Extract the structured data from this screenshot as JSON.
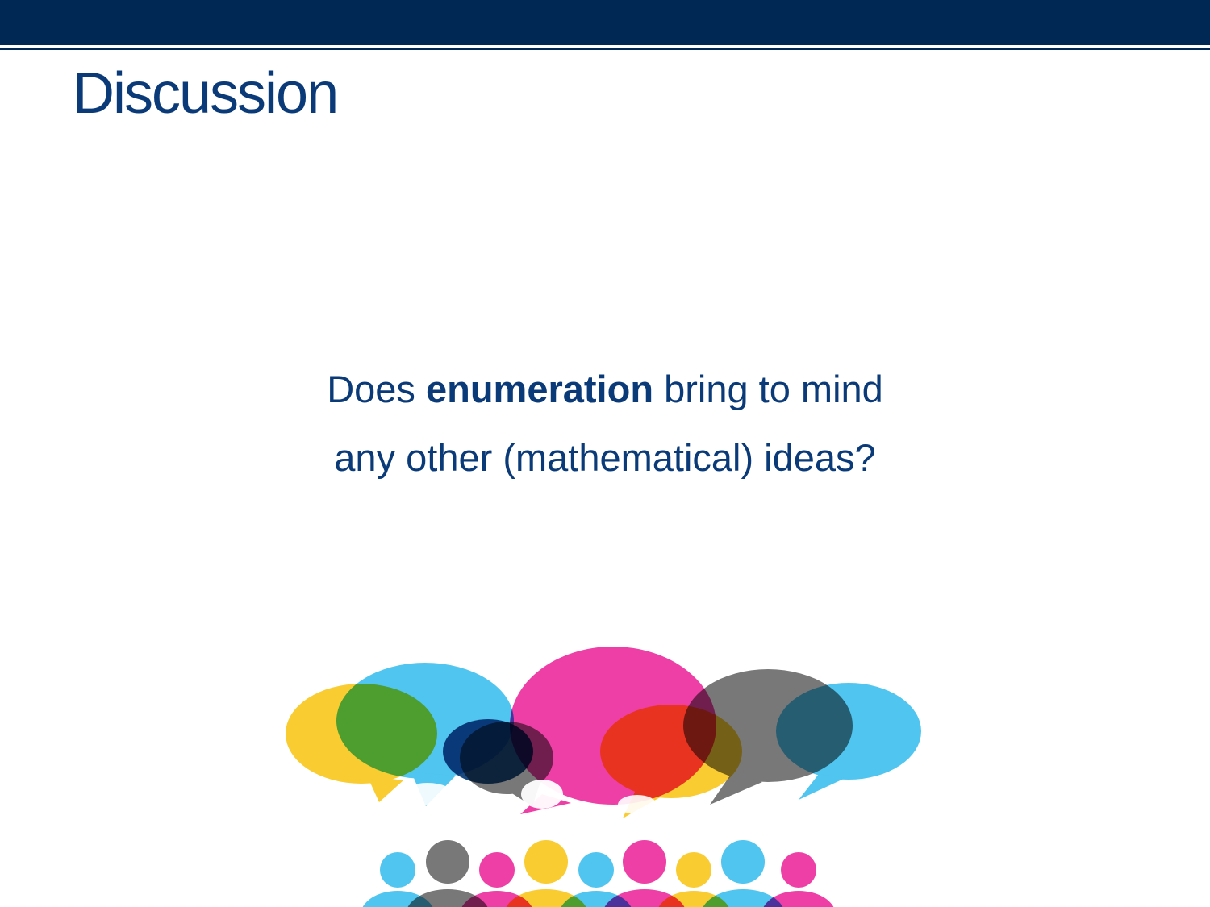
{
  "slide": {
    "title": "Discussion",
    "question": {
      "line1_before": "Does ",
      "line1_bold": "enumeration",
      "line1_after": " bring to mind",
      "line2": "any other (mathematical) ideas?"
    }
  },
  "colors": {
    "header_navy": "#002855",
    "text_blue": "#0a3a78",
    "yellow": "#f9cc32",
    "cyan": "#4fc5ef",
    "magenta": "#ee3fa6",
    "gray": "#787878",
    "red": "#ff2200",
    "navy": "#003a6c"
  },
  "illustration": {
    "icon": "discussion-speech-bubbles-crowd-icon"
  }
}
